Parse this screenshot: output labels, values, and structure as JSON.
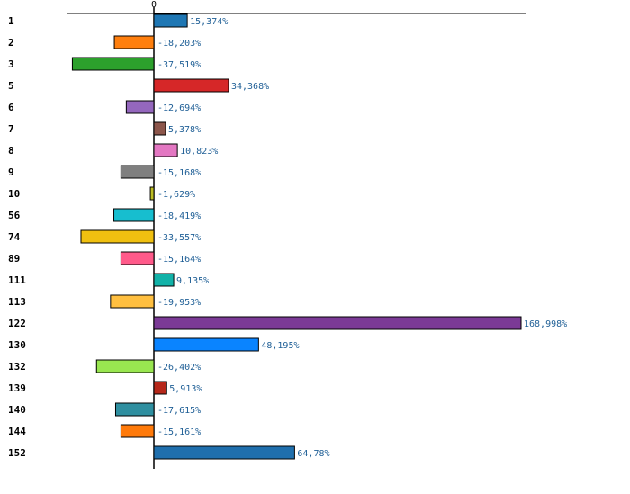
{
  "chart_data": {
    "type": "bar",
    "orientation": "horizontal",
    "title": "",
    "xlabel": "",
    "ylabel": "",
    "xlim": [
      -38,
      170
    ],
    "grid": false,
    "zero_tick_label": "0",
    "categories": [
      "1",
      "2",
      "3",
      "5",
      "6",
      "7",
      "8",
      "9",
      "10",
      "56",
      "74",
      "89",
      "111",
      "113",
      "122",
      "130",
      "132",
      "139",
      "140",
      "144",
      "152"
    ],
    "values": [
      15.374,
      -18.203,
      -37.519,
      34.368,
      -12.694,
      5.378,
      10.823,
      -15.168,
      -1.629,
      -18.419,
      -33.557,
      -15.164,
      9.135,
      -19.953,
      168.998,
      48.195,
      -26.402,
      5.913,
      -17.615,
      -15.161,
      64.78
    ],
    "value_labels": [
      "15,374%",
      "-18,203%",
      "-37,519%",
      "34,368%",
      "-12,694%",
      "5,378%",
      "10,823%",
      "-15,168%",
      "-1,629%",
      "-18,419%",
      "-33,557%",
      "-15,164%",
      "9,135%",
      "-19,953%",
      "168,998%",
      "48,195%",
      "-26,402%",
      "5,913%",
      "-17,615%",
      "-15,161%",
      "64,78%"
    ],
    "colors": [
      "#1f77b4",
      "#ff7f0e",
      "#2ca02c",
      "#d62728",
      "#9467bd",
      "#8c564b",
      "#e377c2",
      "#7f7f7f",
      "#bcbd22",
      "#17becf",
      "#f0c010",
      "#ff5a8a",
      "#12b2a8",
      "#ffbf40",
      "#7b3a96",
      "#0a84ff",
      "#99e650",
      "#b6281a",
      "#2f8fa0",
      "#ff7a0a",
      "#1f6fad"
    ]
  }
}
